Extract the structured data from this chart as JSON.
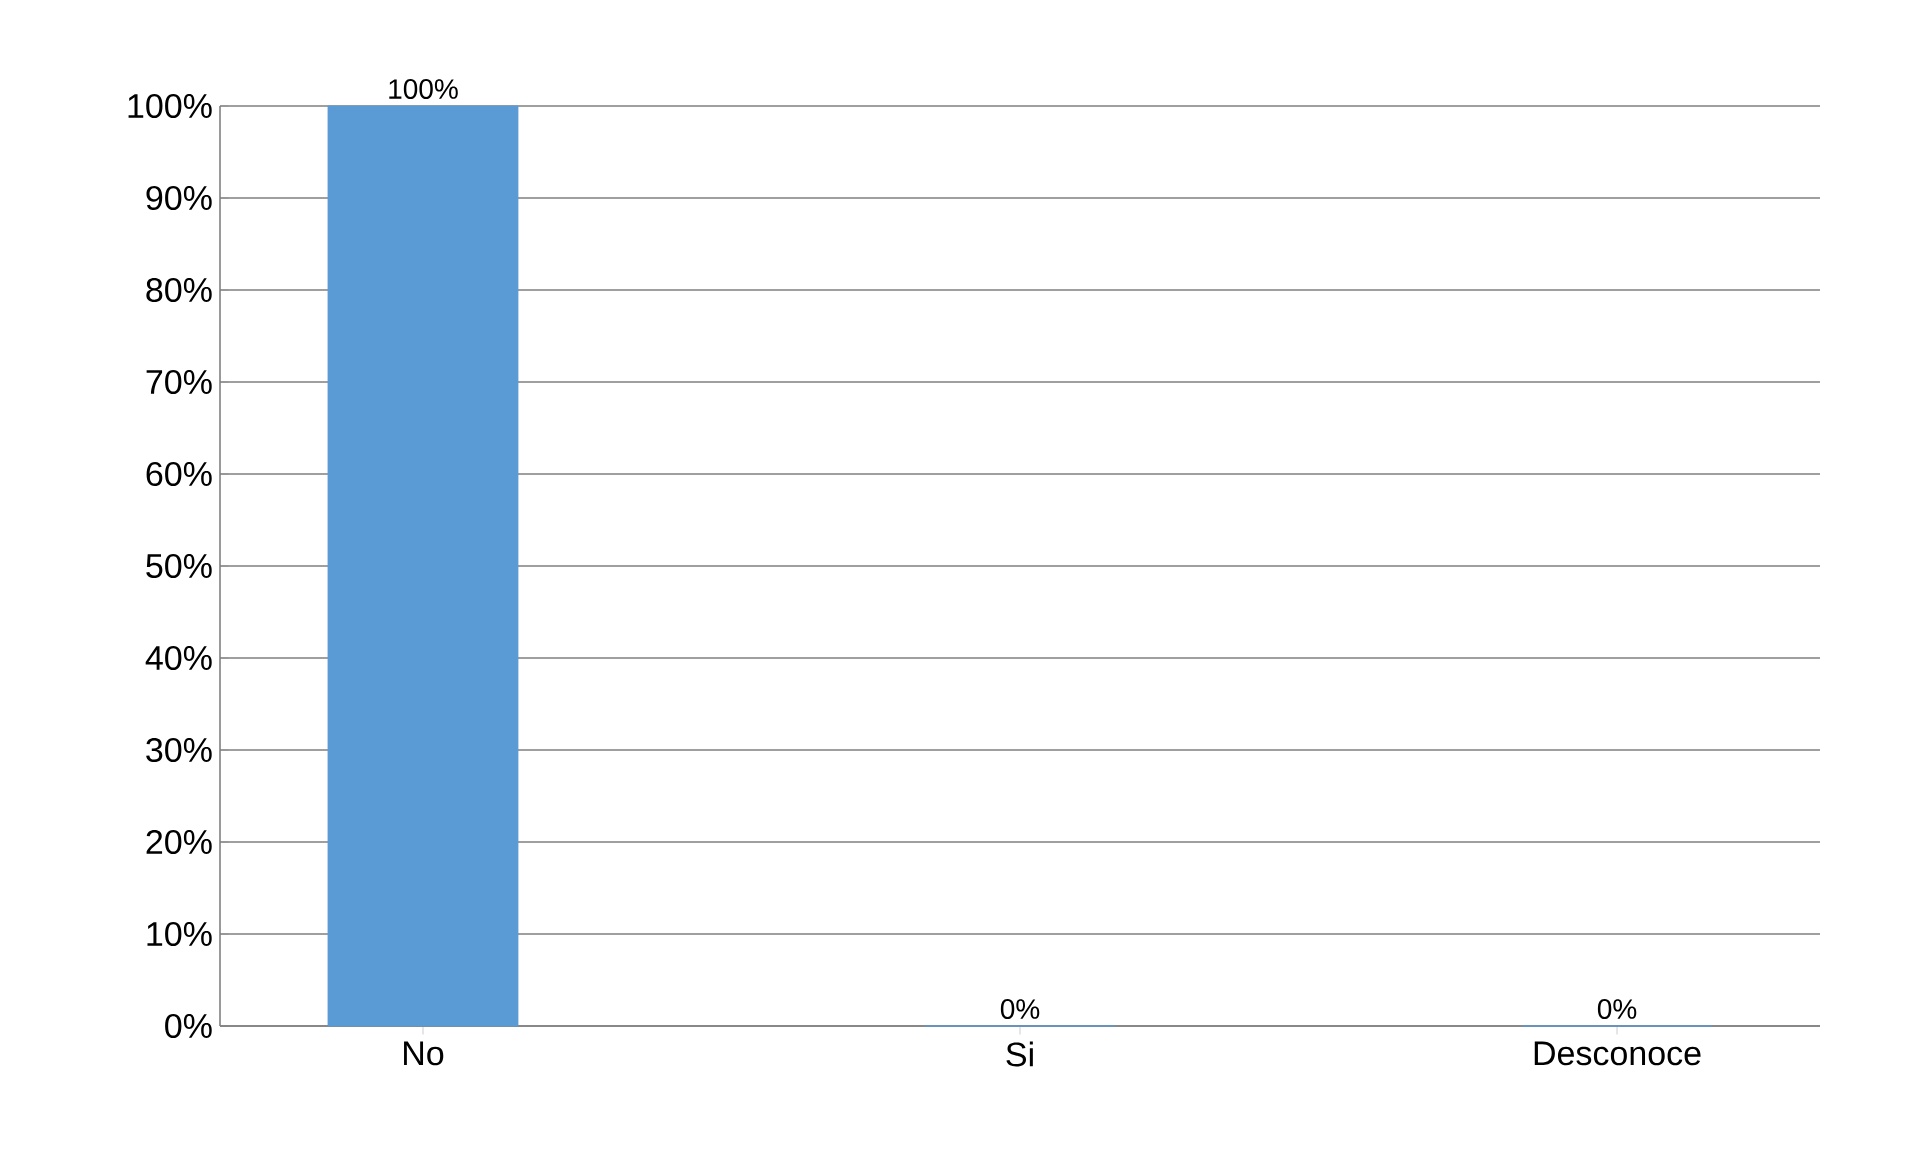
{
  "chart_data": {
    "type": "bar",
    "categories": [
      "No",
      "Si",
      "Desconoce"
    ],
    "values": [
      100,
      0,
      0
    ],
    "color": "#5b9bd5",
    "value_labels": [
      "100%",
      "0%",
      "0%"
    ],
    "ylim": [
      0,
      100
    ],
    "yticks": [
      {
        "value": 0,
        "label": "0%"
      },
      {
        "value": 10,
        "label": "10%"
      },
      {
        "value": 20,
        "label": "20%"
      },
      {
        "value": 30,
        "label": "30%"
      },
      {
        "value": 40,
        "label": "40%"
      },
      {
        "value": 50,
        "label": "50%"
      },
      {
        "value": 60,
        "label": "60%"
      },
      {
        "value": 70,
        "label": "70%"
      },
      {
        "value": 80,
        "label": "80%"
      },
      {
        "value": 90,
        "label": "90%"
      },
      {
        "value": 100,
        "label": "100%"
      }
    ],
    "grid": "y"
  }
}
